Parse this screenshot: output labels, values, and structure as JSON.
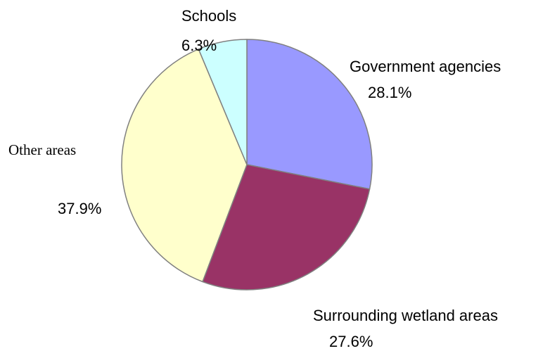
{
  "chart_data": {
    "type": "pie",
    "title": "",
    "slices": [
      {
        "label": "Government agencies",
        "percent_label": "28.1%",
        "value": 28.1,
        "color": "#9999ff"
      },
      {
        "label": "Surrounding wetland areas",
        "percent_label": "27.6%",
        "value": 27.6,
        "color": "#993366"
      },
      {
        "label": "Other areas",
        "percent_label": "37.9%",
        "value": 37.9,
        "color": "#ffffcc"
      },
      {
        "label": "Schools",
        "percent_label": "6.3%",
        "value": 6.3,
        "color": "#ccffff"
      }
    ],
    "start_angle_deg": 0,
    "direction": "clockwise",
    "slice_border_color": "#808080",
    "legend": "none"
  }
}
